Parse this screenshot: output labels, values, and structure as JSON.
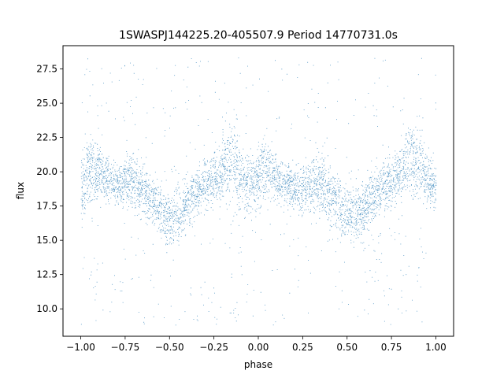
{
  "chart_data": {
    "type": "scatter",
    "title": "1SWASPJ144225.20-405507.9 Period 14770731.0s",
    "xlabel": "phase",
    "ylabel": "flux",
    "xlim": [
      -1.1,
      1.1
    ],
    "ylim": [
      8.0,
      29.2
    ],
    "xticks": [
      -1.0,
      -0.75,
      -0.5,
      -0.25,
      0.0,
      0.25,
      0.5,
      0.75,
      1.0
    ],
    "xtick_labels": [
      "−1.00",
      "−0.75",
      "−0.50",
      "−0.25",
      "0.00",
      "0.25",
      "0.50",
      "0.75",
      "1.00"
    ],
    "yticks": [
      10.0,
      12.5,
      15.0,
      17.5,
      20.0,
      22.5,
      25.0,
      27.5
    ],
    "ytick_labels": [
      "10.0",
      "12.5",
      "15.0",
      "17.5",
      "20.0",
      "22.5",
      "25.0",
      "27.5"
    ],
    "grid": false,
    "legend": "none",
    "marker_color": "#1f77b4",
    "series": [
      {
        "phase_x": [
          -1.0,
          -0.96,
          -0.9,
          -0.8,
          -0.72,
          -0.65,
          -0.58,
          -0.5,
          -0.45,
          -0.4,
          -0.32,
          -0.25,
          -0.18,
          -0.14,
          -0.1,
          -0.05,
          0.0,
          0.04,
          0.1,
          0.2,
          0.28,
          0.35,
          0.42,
          0.5,
          0.55,
          0.6,
          0.68,
          0.75,
          0.82,
          0.86,
          0.9,
          0.95,
          1.0
        ],
        "flux_upper": [
          22.0,
          24.0,
          22.5,
          21.0,
          22.5,
          21.5,
          20.0,
          19.5,
          20.0,
          20.5,
          21.5,
          22.0,
          23.5,
          25.5,
          23.0,
          22.0,
          22.5,
          24.0,
          22.0,
          21.0,
          22.0,
          22.5,
          21.0,
          20.0,
          20.0,
          20.5,
          21.5,
          22.0,
          23.5,
          25.5,
          24.5,
          22.0,
          22.0
        ],
        "flux_lower": [
          15.0,
          16.0,
          17.5,
          17.0,
          16.5,
          16.0,
          15.0,
          13.5,
          13.8,
          15.0,
          16.5,
          17.0,
          17.0,
          16.5,
          16.0,
          16.0,
          16.5,
          17.0,
          17.0,
          16.5,
          16.0,
          16.0,
          15.0,
          13.8,
          13.8,
          14.5,
          16.0,
          17.0,
          17.0,
          16.5,
          17.0,
          17.0,
          16.0
        ],
        "flux_range": [
          8.8,
          28.4
        ]
      }
    ]
  }
}
